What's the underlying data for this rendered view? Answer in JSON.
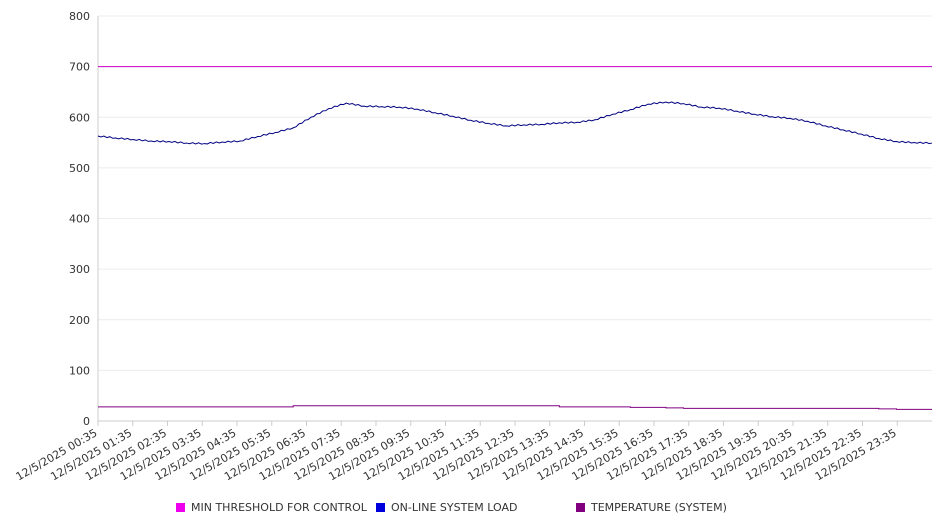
{
  "chart_data": {
    "type": "line",
    "title": "",
    "xlabel": "",
    "ylabel": "",
    "ylim": [
      0,
      800
    ],
    "y_ticks": [
      0,
      100,
      200,
      300,
      400,
      500,
      600,
      700,
      800
    ],
    "grid": true,
    "legend_position": "bottom",
    "x_tick_labels": [
      "12/5/2025 00:35",
      "12/5/2025 01:35",
      "12/5/2025 02:35",
      "12/5/2025 03:35",
      "12/5/2025 04:35",
      "12/5/2025 05:35",
      "12/5/2025 06:35",
      "12/5/2025 07:35",
      "12/5/2025 08:35",
      "12/5/2025 09:35",
      "12/5/2025 10:35",
      "12/5/2025 11:35",
      "12/5/2025 12:35",
      "12/5/2025 13:35",
      "12/5/2025 14:35",
      "12/5/2025 15:35",
      "12/5/2025 16:35",
      "12/5/2025 17:35",
      "12/5/2025 18:35",
      "12/5/2025 19:35",
      "12/5/2025 20:35",
      "12/5/2025 21:35",
      "12/5/2025 22:35",
      "12/5/2025 23:35"
    ],
    "x": [
      "12/5/2025 00:35",
      "12/5/2025 01:05",
      "12/5/2025 01:35",
      "12/5/2025 02:05",
      "12/5/2025 02:35",
      "12/5/2025 03:05",
      "12/5/2025 03:35",
      "12/5/2025 04:05",
      "12/5/2025 04:35",
      "12/5/2025 05:05",
      "12/5/2025 05:35",
      "12/5/2025 06:05",
      "12/5/2025 06:35",
      "12/5/2025 07:05",
      "12/5/2025 07:35",
      "12/5/2025 08:05",
      "12/5/2025 08:35",
      "12/5/2025 09:05",
      "12/5/2025 09:35",
      "12/5/2025 10:05",
      "12/5/2025 10:35",
      "12/5/2025 11:05",
      "12/5/2025 11:35",
      "12/5/2025 12:05",
      "12/5/2025 12:35",
      "12/5/2025 13:05",
      "12/5/2025 13:35",
      "12/5/2025 14:05",
      "12/5/2025 14:35",
      "12/5/2025 15:05",
      "12/5/2025 15:35",
      "12/5/2025 16:05",
      "12/5/2025 16:35",
      "12/5/2025 17:05",
      "12/5/2025 17:35",
      "12/5/2025 18:05",
      "12/5/2025 18:35",
      "12/5/2025 19:05",
      "12/5/2025 19:35",
      "12/5/2025 20:05",
      "12/5/2025 20:35",
      "12/5/2025 21:05",
      "12/5/2025 21:35",
      "12/5/2025 22:05",
      "12/5/2025 22:35",
      "12/5/2025 23:05",
      "12/5/2025 23:35",
      "12/6/2025 00:20"
    ],
    "series": [
      {
        "name": "MIN THRESHOLD FOR CONTROL",
        "color": "#cc00cc",
        "values": [
          700,
          700,
          700,
          700,
          700,
          700,
          700,
          700,
          700,
          700,
          700,
          700,
          700,
          700,
          700,
          700,
          700,
          700,
          700,
          700,
          700,
          700,
          700,
          700,
          700,
          700,
          700,
          700,
          700,
          700,
          700,
          700,
          700,
          700,
          700,
          700,
          700,
          700,
          700,
          700,
          700,
          700,
          700,
          700,
          700,
          700,
          700,
          700
        ]
      },
      {
        "name": "ON-LINE SYSTEM LOAD",
        "color": "#000080",
        "values": [
          563,
          559,
          556,
          553,
          552,
          549,
          548,
          551,
          553,
          562,
          570,
          579,
          600,
          617,
          628,
          622,
          621,
          620,
          616,
          609,
          602,
          594,
          588,
          583,
          585,
          586,
          589,
          590,
          595,
          606,
          615,
          626,
          630,
          627,
          620,
          618,
          612,
          606,
          601,
          598,
          592,
          583,
          575,
          567,
          558,
          552,
          550,
          549
        ]
      },
      {
        "name": "TEMPERATURE (SYSTEM)",
        "color": "#800080",
        "values": [
          28,
          28,
          28,
          28,
          28,
          28,
          28,
          28,
          28,
          28,
          28,
          30,
          30,
          30,
          30,
          30,
          30,
          30,
          30,
          30,
          30,
          30,
          30,
          30,
          30,
          30,
          28,
          28,
          28,
          28,
          27,
          27,
          26,
          25,
          25,
          25,
          25,
          25,
          25,
          25,
          25,
          25,
          25,
          25,
          24,
          23,
          23,
          23
        ]
      }
    ]
  }
}
